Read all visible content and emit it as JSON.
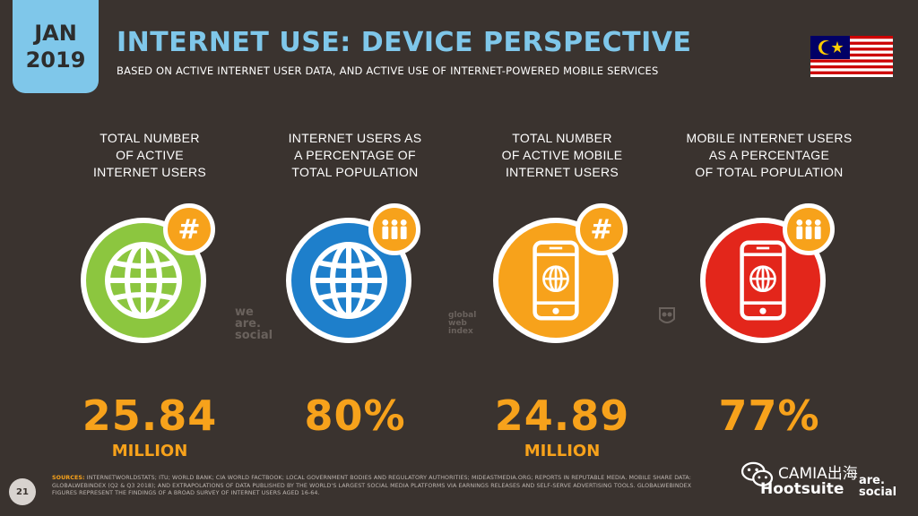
{
  "date": {
    "month": "JAN",
    "year": "2019"
  },
  "title": "INTERNET USE: DEVICE PERSPECTIVE",
  "subtitle": "BASED ON ACTIVE INTERNET USER DATA, AND ACTIVE USE OF INTERNET-POWERED MOBILE SERVICES",
  "flag": {
    "icon": "malaysia-flag-icon"
  },
  "colors": {
    "accent": "#f7a21b",
    "title": "#7fc7ea",
    "green": "#8cc63f",
    "blue": "#1e7fcb",
    "orange": "#f7a21b",
    "red": "#e3261b",
    "background": "#3a332f"
  },
  "stats": [
    {
      "label_lines": [
        "TOTAL NUMBER",
        "OF ACTIVE",
        "INTERNET USERS"
      ],
      "value": "25.84",
      "unit": "MILLION",
      "icon": "globe-icon",
      "badge_icon": "hash-icon",
      "badge_text": "#",
      "color": "#8cc63f"
    },
    {
      "label_lines": [
        "INTERNET USERS AS",
        "A PERCENTAGE OF",
        "TOTAL POPULATION"
      ],
      "value": "80%",
      "unit": "",
      "icon": "globe-icon",
      "badge_icon": "people-icon",
      "badge_text": "",
      "color": "#1e7fcb"
    },
    {
      "label_lines": [
        "TOTAL NUMBER",
        "OF ACTIVE MOBILE",
        "INTERNET USERS"
      ],
      "value": "24.89",
      "unit": "MILLION",
      "icon": "mobile-phone-icon",
      "badge_icon": "hash-icon",
      "badge_text": "#",
      "color": "#f7a21b"
    },
    {
      "label_lines": [
        "MOBILE INTERNET USERS",
        "AS A PERCENTAGE",
        "OF TOTAL POPULATION"
      ],
      "value": "77%",
      "unit": "",
      "icon": "mobile-phone-icon",
      "badge_icon": "people-icon",
      "badge_text": "",
      "color": "#e3261b"
    }
  ],
  "watermarks": {
    "we_are_social": [
      "we",
      "are.",
      "social"
    ],
    "globalwebindex": [
      "global",
      "web",
      "index"
    ]
  },
  "page_number": "21",
  "sources_label": "SOURCES:",
  "sources_text": "INTERNETWORLDSTATS; ITU; WORLD BANK; CIA WORLD FACTBOOK; LOCAL GOVERNMENT BODIES AND REGULATORY AUTHORITIES; MIDEASTMEDIA.ORG; REPORTS IN REPUTABLE MEDIA. MOBILE SHARE DATA: GLOBALWEBINDEX (Q2 & Q3 2018); AND EXTRAPOLATIONS OF DATA PUBLISHED BY THE WORLD'S LARGEST SOCIAL MEDIA PLATFORMS VIA EARNINGS RELEASES AND SELF-SERVE ADVERTISING TOOLS. GLOBALWEBINDEX FIGURES REPRESENT THE FINDINGS OF A BROAD SURVEY OF INTERNET USERS AGED 16-64.",
  "brand_hootsuite": "Hootsuite",
  "brand_was": [
    "are.",
    "social"
  ],
  "overlay_text": "CAMIA出海"
}
